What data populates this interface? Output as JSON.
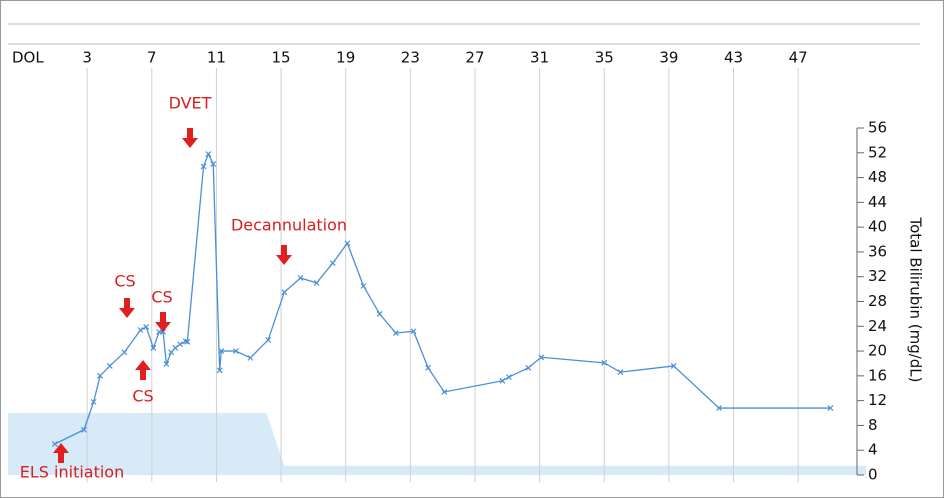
{
  "chart_data": {
    "type": "line",
    "x_axis_label": "DOL",
    "y_axis_label": "Total Bilirubin (mg/dL)",
    "xlim": [
      -1.9,
      51.2
    ],
    "xticks": [
      3,
      7,
      11,
      15,
      19,
      23,
      27,
      31,
      35,
      39,
      43,
      47
    ],
    "ylim": [
      0,
      56
    ],
    "yticks": [
      0,
      4,
      8,
      12,
      16,
      20,
      24,
      28,
      32,
      36,
      40,
      44,
      48,
      52,
      56
    ],
    "grid": true,
    "series": [
      {
        "color": "#4a90d9",
        "x": [
          1,
          2.8,
          3.4,
          3.8,
          4.4,
          5.3,
          6.3,
          6.65,
          7.1,
          7.45,
          7.7,
          7.9,
          8.2,
          8.45,
          8.75,
          9.1,
          9.2,
          10.2,
          10.5,
          10.8,
          11.2,
          11.3,
          12.2,
          13.1,
          14.2,
          15.2,
          16.2,
          17.2,
          18.2,
          19.1,
          20.1,
          21.1,
          22.1,
          23.2,
          24.1,
          25.1,
          28.7,
          29.1,
          30.3,
          31.1,
          35,
          36,
          39.3,
          42.1,
          49
        ],
        "values": [
          5,
          7.3,
          11.8,
          16,
          17.6,
          19.8,
          23.4,
          23.9,
          20.5,
          23.1,
          23.1,
          17.9,
          19.8,
          20.5,
          21.1,
          21.6,
          21.5,
          49.8,
          51.8,
          50.2,
          16.9,
          20,
          20,
          18.9,
          21.8,
          29.5,
          31.8,
          31,
          34.2,
          37.4,
          30.5,
          26,
          22.9,
          23.2,
          17.3,
          13.4,
          15.2,
          15.8,
          17.3,
          19,
          18.1,
          16.6,
          17.6,
          10.8,
          10.8
        ]
      }
    ],
    "shaded_region": {
      "color": "#d6eaf8",
      "x": [
        -1.9,
        14.1,
        15.2,
        51.2
      ],
      "values": [
        10,
        10,
        1.5,
        1.5
      ]
    },
    "annotations": [
      "DVET",
      "Decannulation",
      "CS",
      "CS",
      "CS",
      "ELS initiation"
    ]
  }
}
